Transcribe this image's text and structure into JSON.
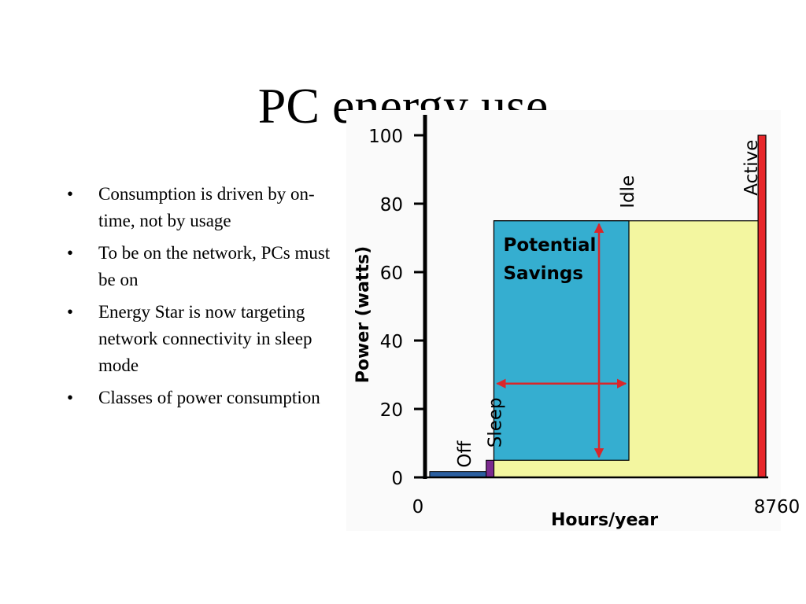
{
  "slide": {
    "title": "PC energy use",
    "bullets": [
      "Consumption is driven by on-time, not by usage",
      "To be on the network, PCs must be on",
      "Energy Star is now targeting network connectivity in sleep mode",
      "Classes of power consumption"
    ]
  },
  "chart_data": {
    "type": "area",
    "xlabel": "Hours/year",
    "ylabel": "Power (watts)",
    "ylim": [
      0,
      100
    ],
    "xlim": [
      0,
      8760
    ],
    "x_ticks": [
      "0",
      "8760"
    ],
    "y_ticks": [
      0,
      20,
      40,
      60,
      80,
      100
    ],
    "grid": false,
    "colors": {
      "off": "#2b5fa0",
      "sleep": "#7b2a8e",
      "idle_savings": "#35aed0",
      "idle": "#f3f6a0",
      "active": "#e8262a",
      "arrow": "#d9262a"
    },
    "states": [
      {
        "label": "Off",
        "x_start": 120,
        "x_end": 1570,
        "watts": 1
      },
      {
        "label": "Sleep",
        "x_start": 1570,
        "x_end": 1770,
        "watts": 5
      },
      {
        "label": "Idle",
        "x_start": 1770,
        "x_end": 8560,
        "watts": 75
      },
      {
        "label": "Active",
        "x_start": 8560,
        "x_end": 8760,
        "watts": 100
      }
    ],
    "savings_region": {
      "label": "Potential Savings",
      "x_start": 1770,
      "x_end": 5240,
      "y_low": 5,
      "y_high": 75
    }
  }
}
